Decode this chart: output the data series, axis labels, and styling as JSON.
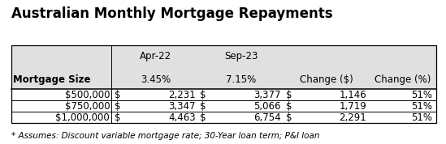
{
  "title": "Australian Monthly Mortgage Repayments",
  "footnote": "* Assumes: Discount variable mortgage rate; 30-Year loan term; P&I loan",
  "rows": [
    [
      "$500,000",
      "$",
      "2,231",
      "$",
      "3,377",
      "$",
      "1,146",
      "51%"
    ],
    [
      "$750,000",
      "$",
      "3,347",
      "$",
      "5,066",
      "$",
      "1,719",
      "51%"
    ],
    [
      "$1,000,000",
      "$",
      "4,463",
      "$",
      "6,754",
      "$",
      "2,291",
      "51%"
    ]
  ],
  "bg_color": "#ffffff",
  "header_bg": "#e0e0e0",
  "border_color": "#000000",
  "text_color": "#000000",
  "title_fontsize": 12,
  "table_fontsize": 8.5,
  "footnote_fontsize": 7.5
}
